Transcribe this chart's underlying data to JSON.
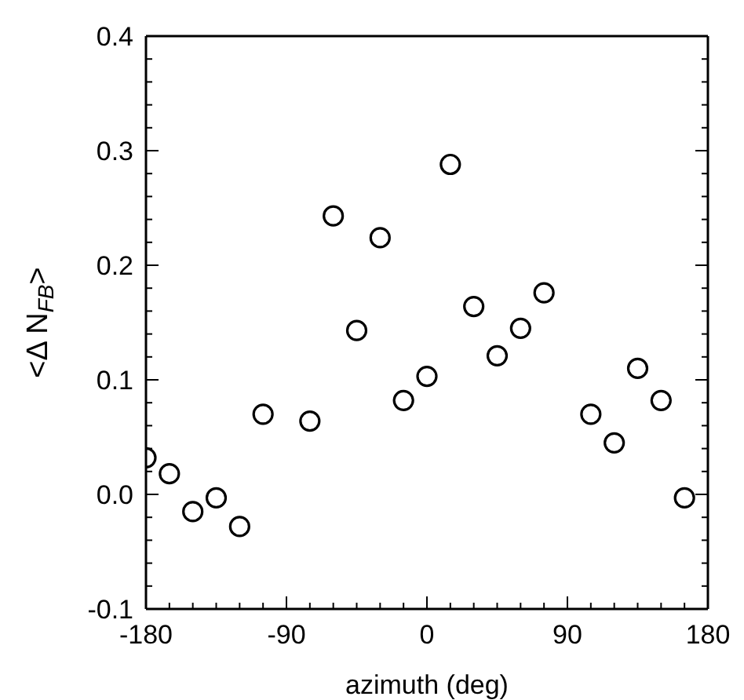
{
  "chart_data": {
    "type": "scatter",
    "xlabel": "azimuth (deg)",
    "ylabel": "<Δ N$_{FB}$>",
    "x": [
      -180,
      -165,
      -150,
      -135,
      -120,
      -105,
      -75,
      -60,
      -45,
      -30,
      -15,
      0,
      15,
      30,
      45,
      60,
      75,
      105,
      120,
      135,
      150,
      165
    ],
    "series": [
      {
        "color": "#000000",
        "values": [
          0.032,
          0.018,
          -0.015,
          -0.003,
          -0.028,
          0.07,
          0.064,
          0.243,
          0.143,
          0.224,
          0.082,
          0.103,
          0.288,
          0.164,
          0.121,
          0.145,
          0.176,
          0.07,
          0.045,
          0.11,
          0.082,
          -0.003
        ]
      }
    ],
    "marker": "circle",
    "xlim": [
      -180,
      180
    ],
    "xticks": [
      -180,
      {
        "value": -165,
        "label": null
      },
      {
        "value": -150,
        "label": null
      },
      {
        "value": -135,
        "label": null
      },
      {
        "value": -120,
        "label": null
      },
      {
        "value": -105,
        "label": null
      },
      -90,
      {
        "value": -75,
        "label": null
      },
      {
        "value": -60,
        "label": null
      },
      {
        "value": -45,
        "label": null
      },
      {
        "value": -30,
        "label": null
      },
      {
        "value": -15,
        "label": null
      },
      0,
      {
        "value": 15,
        "label": null
      },
      {
        "value": 30,
        "label": null
      },
      {
        "value": 45,
        "label": null
      },
      {
        "value": 60,
        "label": null
      },
      {
        "value": 75,
        "label": null
      },
      90,
      {
        "value": 105,
        "label": null
      },
      {
        "value": 120,
        "label": null
      },
      {
        "value": 135,
        "label": null
      },
      {
        "value": 150,
        "label": null
      },
      {
        "value": 165,
        "label": null
      },
      180
    ],
    "ylim": [
      -0.1,
      0.4
    ],
    "yticks": [
      {
        "value": -0.1,
        "label": "-0.1"
      },
      {
        "value": -0.08,
        "label": null
      },
      {
        "value": -0.06,
        "label": null
      },
      {
        "value": -0.04,
        "label": null
      },
      {
        "value": -0.02,
        "label": null
      },
      {
        "value": 0,
        "label": "0.0"
      },
      {
        "value": 0.02,
        "label": null
      },
      {
        "value": 0.04,
        "label": null
      },
      {
        "value": 0.06,
        "label": null
      },
      {
        "value": 0.08,
        "label": null
      },
      0.1,
      {
        "value": 0.12,
        "label": null
      },
      {
        "value": 0.14,
        "label": null
      },
      {
        "value": 0.16,
        "label": null
      },
      {
        "value": 0.18,
        "label": null
      },
      0.2,
      {
        "value": 0.22,
        "label": null
      },
      {
        "value": 0.24,
        "label": null
      },
      {
        "value": 0.26,
        "label": null
      },
      {
        "value": 0.28,
        "label": null
      },
      0.3,
      {
        "value": 0.32,
        "label": null
      },
      {
        "value": 0.34,
        "label": null
      },
      {
        "value": 0.36,
        "label": null
      },
      {
        "value": 0.38,
        "label": null
      },
      0.4
    ]
  }
}
